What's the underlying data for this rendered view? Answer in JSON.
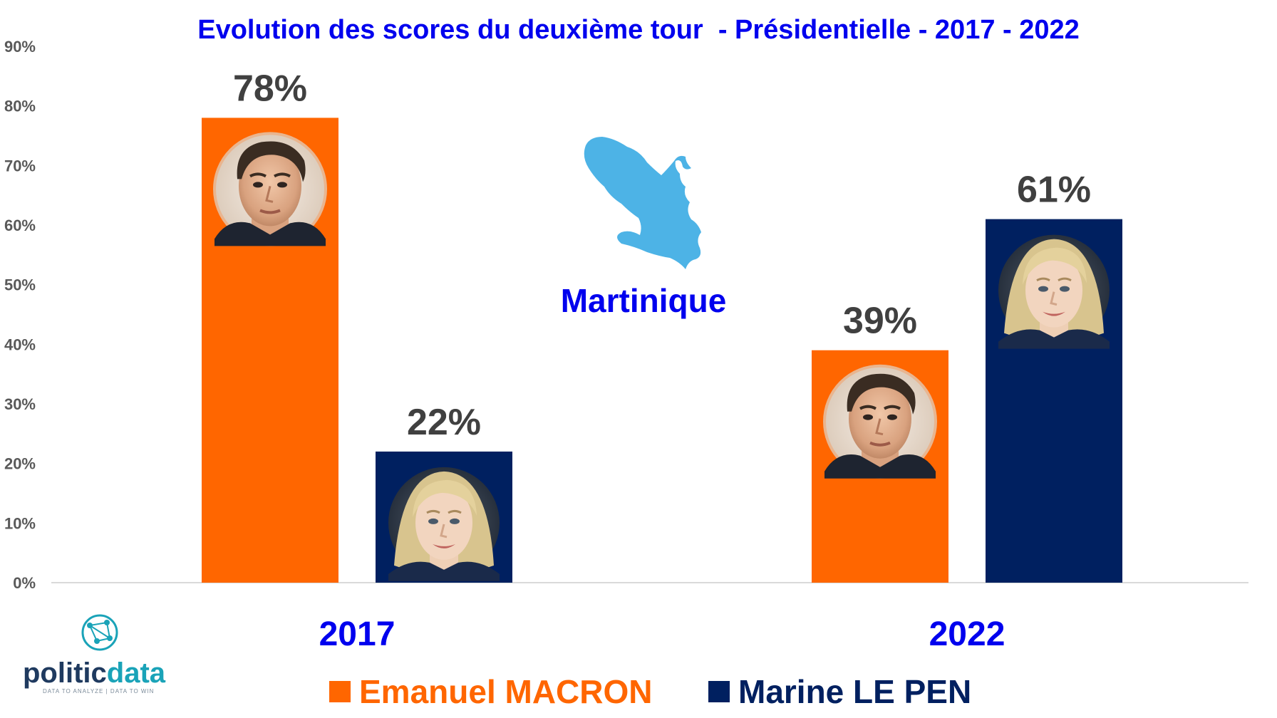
{
  "chart_data": {
    "type": "bar",
    "title": "Evolution des scores du deuxième tour  - Présidentielle - 2017 - 2022",
    "categories": [
      "2017",
      "2022"
    ],
    "series": [
      {
        "name": "Emanuel MACRON",
        "color": "#ff6600",
        "values": [
          78,
          39
        ],
        "labels": [
          "78%",
          "39%"
        ],
        "icon": "macron-portrait"
      },
      {
        "name": "Marine LE PEN",
        "color": "#002060",
        "values": [
          22,
          61
        ],
        "labels": [
          "22%",
          "61%"
        ],
        "icon": "le-pen-portrait"
      }
    ],
    "ylim": [
      0,
      90
    ],
    "yticks": [
      {
        "value": 0,
        "label": "0%"
      },
      {
        "value": 10,
        "label": "10%"
      },
      {
        "value": 20,
        "label": "20%"
      },
      {
        "value": 30,
        "label": "30%"
      },
      {
        "value": 40,
        "label": "40%"
      },
      {
        "value": 50,
        "label": "50%"
      },
      {
        "value": 60,
        "label": "60%"
      },
      {
        "value": 70,
        "label": "70%"
      },
      {
        "value": 80,
        "label": "80%"
      },
      {
        "value": 90,
        "label": "90%"
      }
    ],
    "grid": false,
    "legend": "bottom-center",
    "annotation": "Martinique",
    "annotation_icon": "martinique-map-icon",
    "annotation_color": "#4db3e6"
  },
  "branding": {
    "logo_part1": "politic",
    "logo_part2": "data",
    "tagline": "DATA TO ANALYZE | DATA TO WIN",
    "color_part1": "#1f3a5f",
    "color_part2": "#1aa3b8",
    "icon": "network-globe-icon"
  }
}
